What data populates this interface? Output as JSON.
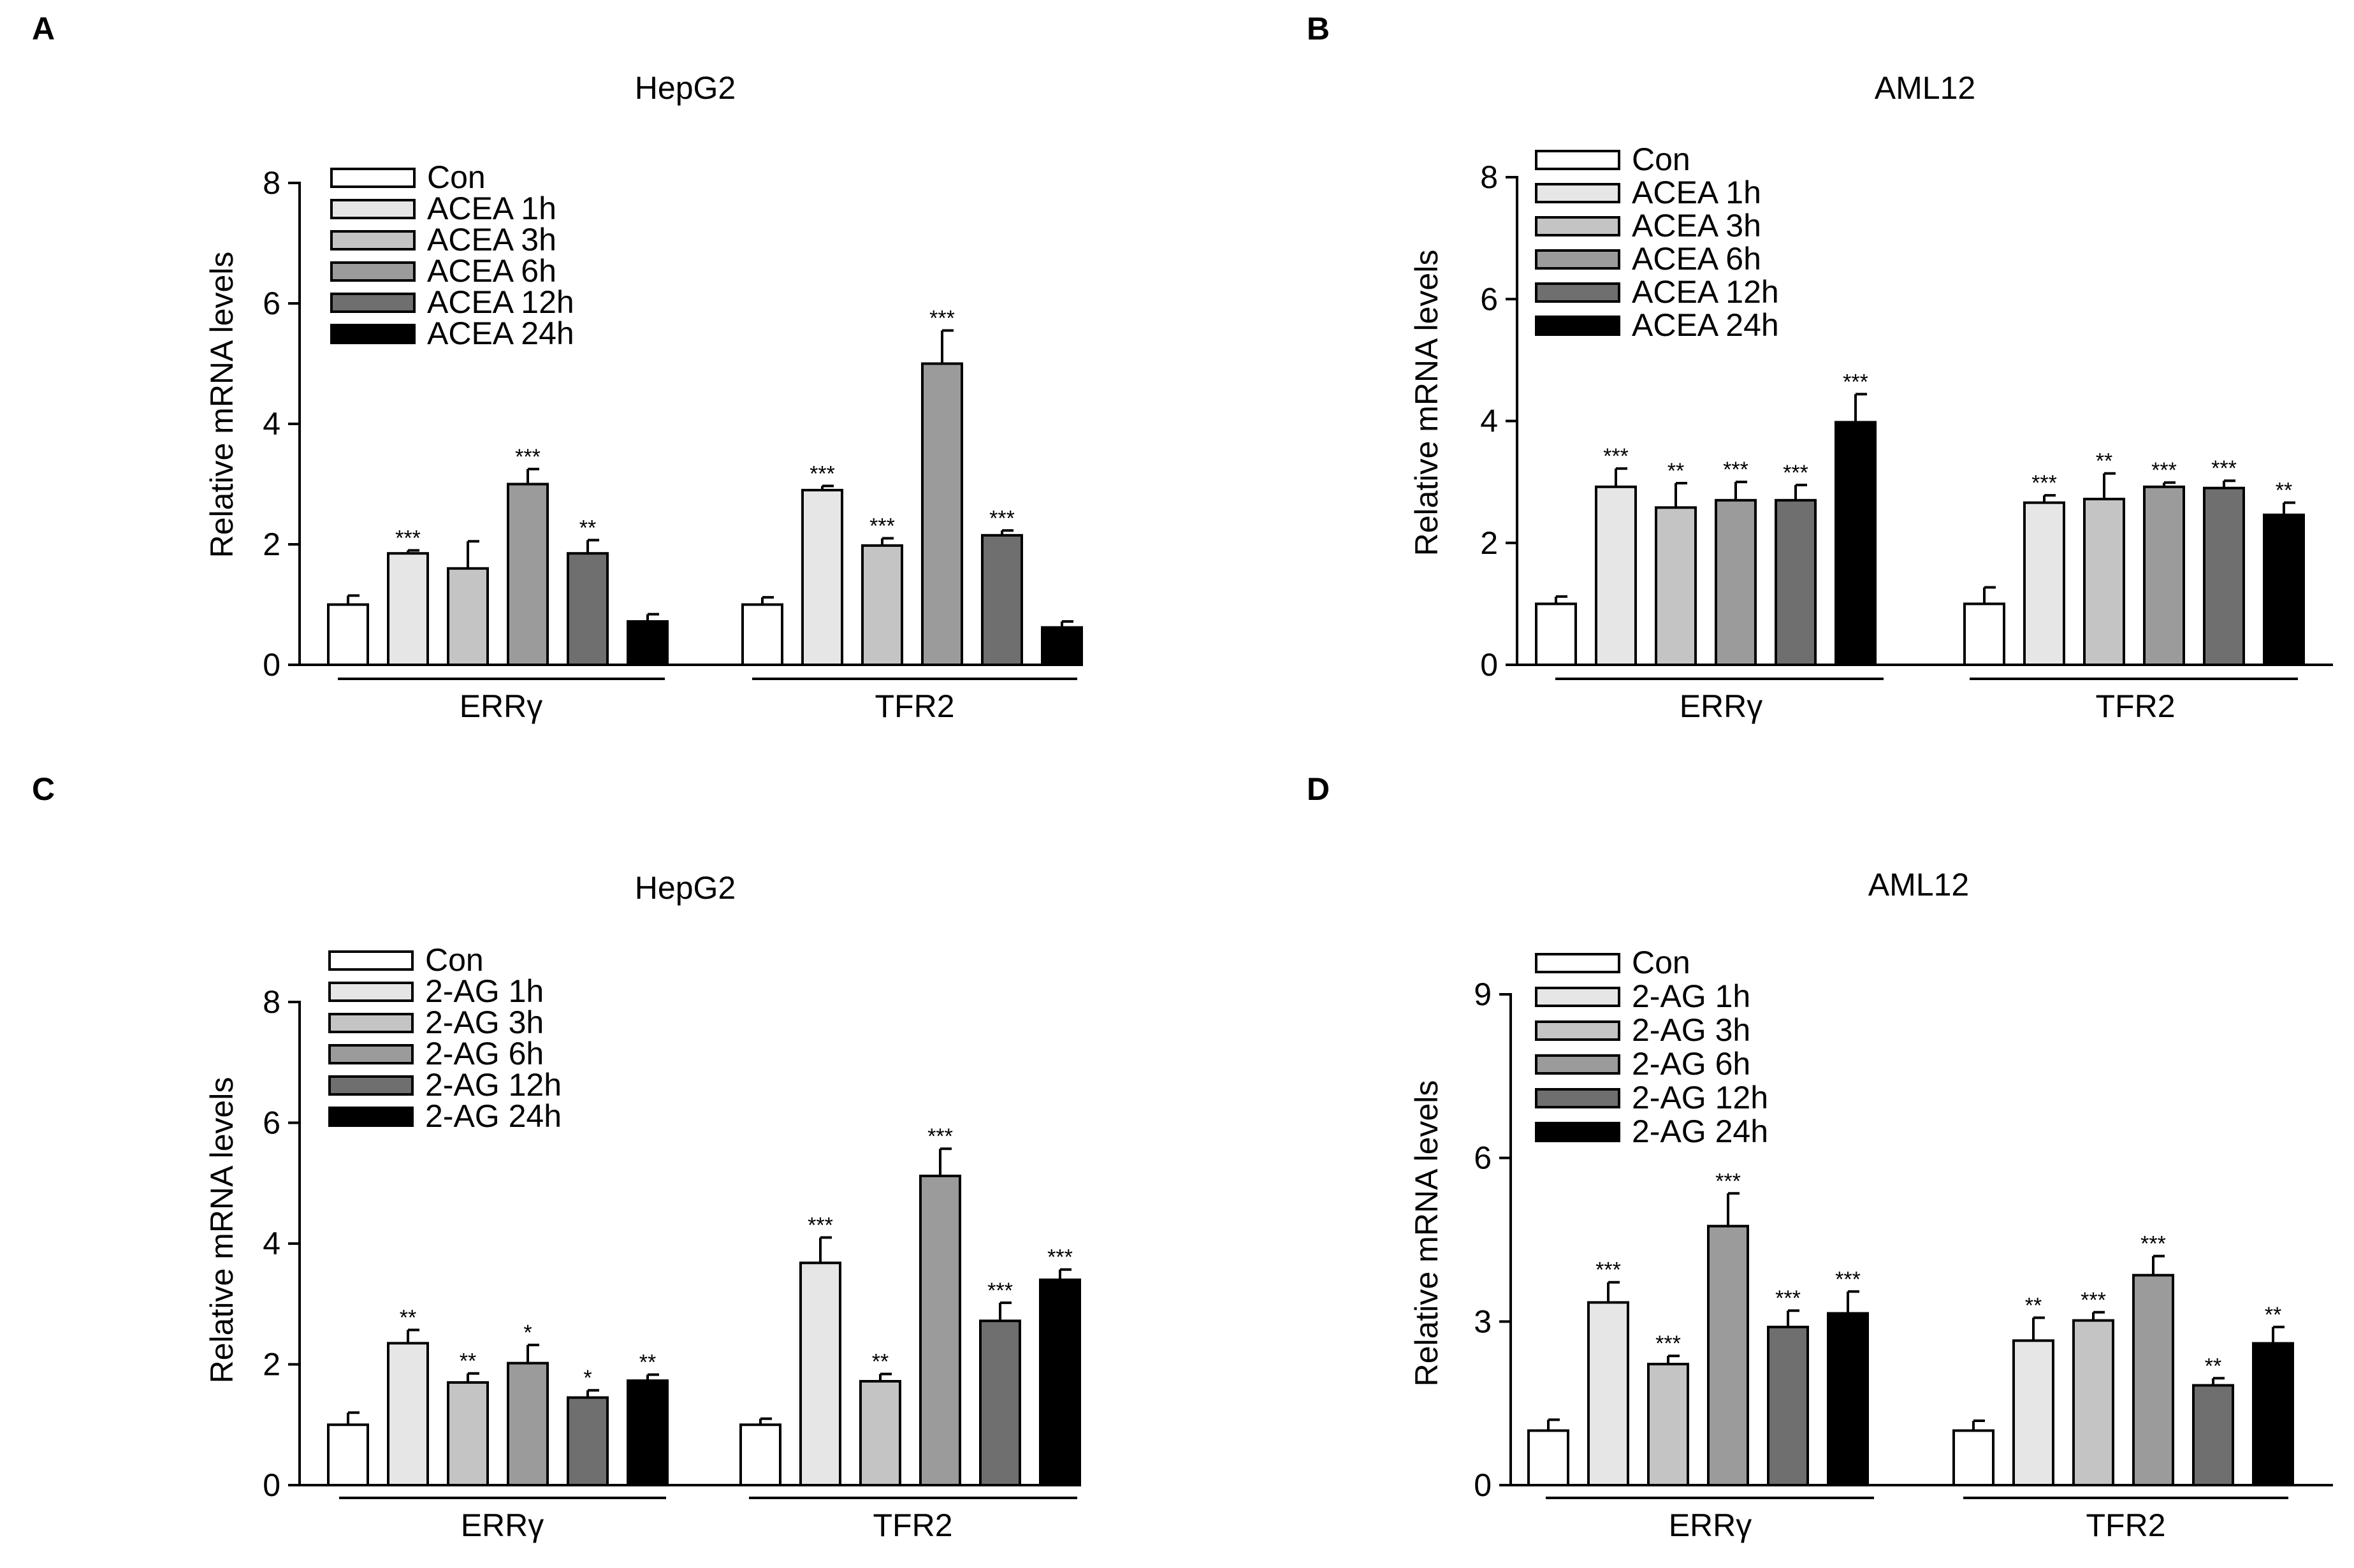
{
  "chart_data": [
    {
      "panel": "A",
      "type": "bar",
      "title": "HepG2",
      "ylabel": "Relative mRNA levels",
      "ylim": [
        0,
        8
      ],
      "yticks": [
        0,
        2,
        4,
        6,
        8
      ],
      "groups": [
        "ERRγ",
        "TFR2"
      ],
      "series": [
        {
          "name": "Con",
          "color": "#ffffff",
          "values": [
            1.0,
            1.0
          ],
          "errors": [
            0.15,
            0.12
          ],
          "sig": [
            "",
            ""
          ]
        },
        {
          "name": "ACEA 1h",
          "color": "#e6e6e6",
          "values": [
            1.85,
            2.9
          ],
          "errors": [
            0.05,
            0.07
          ],
          "sig": [
            "***",
            "***"
          ]
        },
        {
          "name": "ACEA 3h",
          "color": "#c4c4c4",
          "values": [
            1.6,
            1.98
          ],
          "errors": [
            0.45,
            0.12
          ],
          "sig": [
            "",
            "***"
          ]
        },
        {
          "name": "ACEA 6h",
          "color": "#9b9b9b",
          "values": [
            3.0,
            5.0
          ],
          "errors": [
            0.25,
            0.55
          ],
          "sig": [
            "***",
            "***"
          ]
        },
        {
          "name": "ACEA 12h",
          "color": "#6f6f6f",
          "values": [
            1.85,
            2.15
          ],
          "errors": [
            0.22,
            0.08
          ],
          "sig": [
            "**",
            "***"
          ]
        },
        {
          "name": "ACEA 24h",
          "color": "#000000",
          "values": [
            0.72,
            0.62
          ],
          "errors": [
            0.12,
            0.1
          ],
          "sig": [
            "",
            ""
          ]
        }
      ]
    },
    {
      "panel": "B",
      "type": "bar",
      "title": "AML12",
      "ylabel": "Relative mRNA levels",
      "ylim": [
        0,
        8
      ],
      "yticks": [
        0,
        2,
        4,
        6,
        8
      ],
      "groups": [
        "ERRγ",
        "TFR2"
      ],
      "series": [
        {
          "name": "Con",
          "color": "#ffffff",
          "values": [
            1.0,
            1.0
          ],
          "errors": [
            0.12,
            0.27
          ],
          "sig": [
            "",
            ""
          ]
        },
        {
          "name": "ACEA 1h",
          "color": "#e6e6e6",
          "values": [
            2.92,
            2.66
          ],
          "errors": [
            0.3,
            0.12
          ],
          "sig": [
            "***",
            "***"
          ]
        },
        {
          "name": "ACEA 3h",
          "color": "#c4c4c4",
          "values": [
            2.58,
            2.72
          ],
          "errors": [
            0.4,
            0.42
          ],
          "sig": [
            "**",
            "**"
          ]
        },
        {
          "name": "ACEA 6h",
          "color": "#9b9b9b",
          "values": [
            2.7,
            2.92
          ],
          "errors": [
            0.3,
            0.07
          ],
          "sig": [
            "***",
            "***"
          ]
        },
        {
          "name": "ACEA 12h",
          "color": "#6f6f6f",
          "values": [
            2.7,
            2.9
          ],
          "errors": [
            0.25,
            0.12
          ],
          "sig": [
            "***",
            "***"
          ]
        },
        {
          "name": "ACEA 24h",
          "color": "#000000",
          "values": [
            3.98,
            2.46
          ],
          "errors": [
            0.46,
            0.2
          ],
          "sig": [
            "***",
            "**"
          ]
        }
      ]
    },
    {
      "panel": "C",
      "type": "bar",
      "title": "HepG2",
      "ylabel": "Relative mRNA levels",
      "ylim": [
        0,
        8
      ],
      "yticks": [
        0,
        2,
        4,
        6,
        8
      ],
      "groups": [
        "ERRγ",
        "TFR2"
      ],
      "series": [
        {
          "name": "Con",
          "color": "#ffffff",
          "values": [
            1.0,
            1.0
          ],
          "errors": [
            0.2,
            0.1
          ],
          "sig": [
            "",
            ""
          ]
        },
        {
          "name": "2-AG 1h",
          "color": "#e6e6e6",
          "values": [
            2.35,
            3.68
          ],
          "errors": [
            0.22,
            0.42
          ],
          "sig": [
            "**",
            "***"
          ]
        },
        {
          "name": "2-AG 3h",
          "color": "#c4c4c4",
          "values": [
            1.7,
            1.72
          ],
          "errors": [
            0.15,
            0.12
          ],
          "sig": [
            "**",
            "**"
          ]
        },
        {
          "name": "2-AG 6h",
          "color": "#9b9b9b",
          "values": [
            2.02,
            5.12
          ],
          "errors": [
            0.3,
            0.45
          ],
          "sig": [
            "*",
            "***"
          ]
        },
        {
          "name": "2-AG 12h",
          "color": "#6f6f6f",
          "values": [
            1.45,
            2.72
          ],
          "errors": [
            0.12,
            0.3
          ],
          "sig": [
            "*",
            "***"
          ]
        },
        {
          "name": "2-AG 24h",
          "color": "#000000",
          "values": [
            1.73,
            3.4
          ],
          "errors": [
            0.1,
            0.17
          ],
          "sig": [
            "**",
            "***"
          ]
        }
      ]
    },
    {
      "panel": "D",
      "type": "bar",
      "title": "AML12",
      "ylabel": "Relative mRNA levels",
      "ylim": [
        0,
        9
      ],
      "yticks": [
        0,
        3,
        6,
        9
      ],
      "groups": [
        "ERRγ",
        "TFR2"
      ],
      "series": [
        {
          "name": "Con",
          "color": "#ffffff",
          "values": [
            1.0,
            1.0
          ],
          "errors": [
            0.2,
            0.18
          ],
          "sig": [
            "",
            ""
          ]
        },
        {
          "name": "2-AG 1h",
          "color": "#e6e6e6",
          "values": [
            3.35,
            2.65
          ],
          "errors": [
            0.37,
            0.42
          ],
          "sig": [
            "***",
            "**"
          ]
        },
        {
          "name": "2-AG 3h",
          "color": "#c4c4c4",
          "values": [
            2.22,
            3.02
          ],
          "errors": [
            0.15,
            0.15
          ],
          "sig": [
            "***",
            "***"
          ]
        },
        {
          "name": "2-AG 6h",
          "color": "#9b9b9b",
          "values": [
            4.75,
            3.85
          ],
          "errors": [
            0.6,
            0.35
          ],
          "sig": [
            "***",
            "***"
          ]
        },
        {
          "name": "2-AG 12h",
          "color": "#6f6f6f",
          "values": [
            2.9,
            1.83
          ],
          "errors": [
            0.3,
            0.13
          ],
          "sig": [
            "***",
            "**"
          ]
        },
        {
          "name": "2-AG 24h",
          "color": "#000000",
          "values": [
            3.15,
            2.6
          ],
          "errors": [
            0.4,
            0.3
          ],
          "sig": [
            "***",
            "**"
          ]
        }
      ]
    }
  ]
}
